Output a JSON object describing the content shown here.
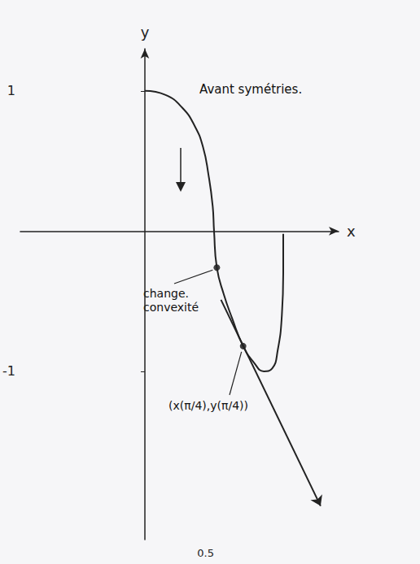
{
  "chart_data": {
    "type": "line",
    "x_label": "x",
    "y_label": "y",
    "xlim": [
      -0.9,
      1.4
    ],
    "ylim": [
      -2.2,
      1.3
    ],
    "xticks": [
      0.5
    ],
    "yticks": [
      -1,
      1
    ],
    "grid": false,
    "series": [
      {
        "type": "line",
        "color": "#222222",
        "marker": "none",
        "x": [
          0,
          0.15,
          0.27,
          0.36,
          0.42,
          0.46,
          0.49,
          0.5,
          0.52,
          0.57,
          0.63,
          0.71,
          0.79,
          0.86,
          0.92,
          0.96,
          0.99,
          1.0,
          1.0
        ],
        "values": [
          1,
          0.97,
          0.88,
          0.75,
          0.6,
          0.4,
          0.18,
          0,
          -0.26,
          -0.45,
          -0.62,
          -0.82,
          -0.94,
          -1.0,
          -0.98,
          -0.85,
          -0.6,
          -0.3,
          -0.02
        ]
      },
      {
        "type": "arrow",
        "color": "#222222",
        "x": [
          0.55,
          1.27
        ],
        "values": [
          -0.49,
          -1.96
        ]
      },
      {
        "type": "scatter",
        "color": "#111111",
        "marker": "circle",
        "x": [
          0.52,
          0.71
        ],
        "values": [
          -0.26,
          -0.82
        ]
      }
    ],
    "annotations": [
      "Avant symétries.",
      "change. convexité",
      "(x(π/4),y(π/4))"
    ]
  }
}
